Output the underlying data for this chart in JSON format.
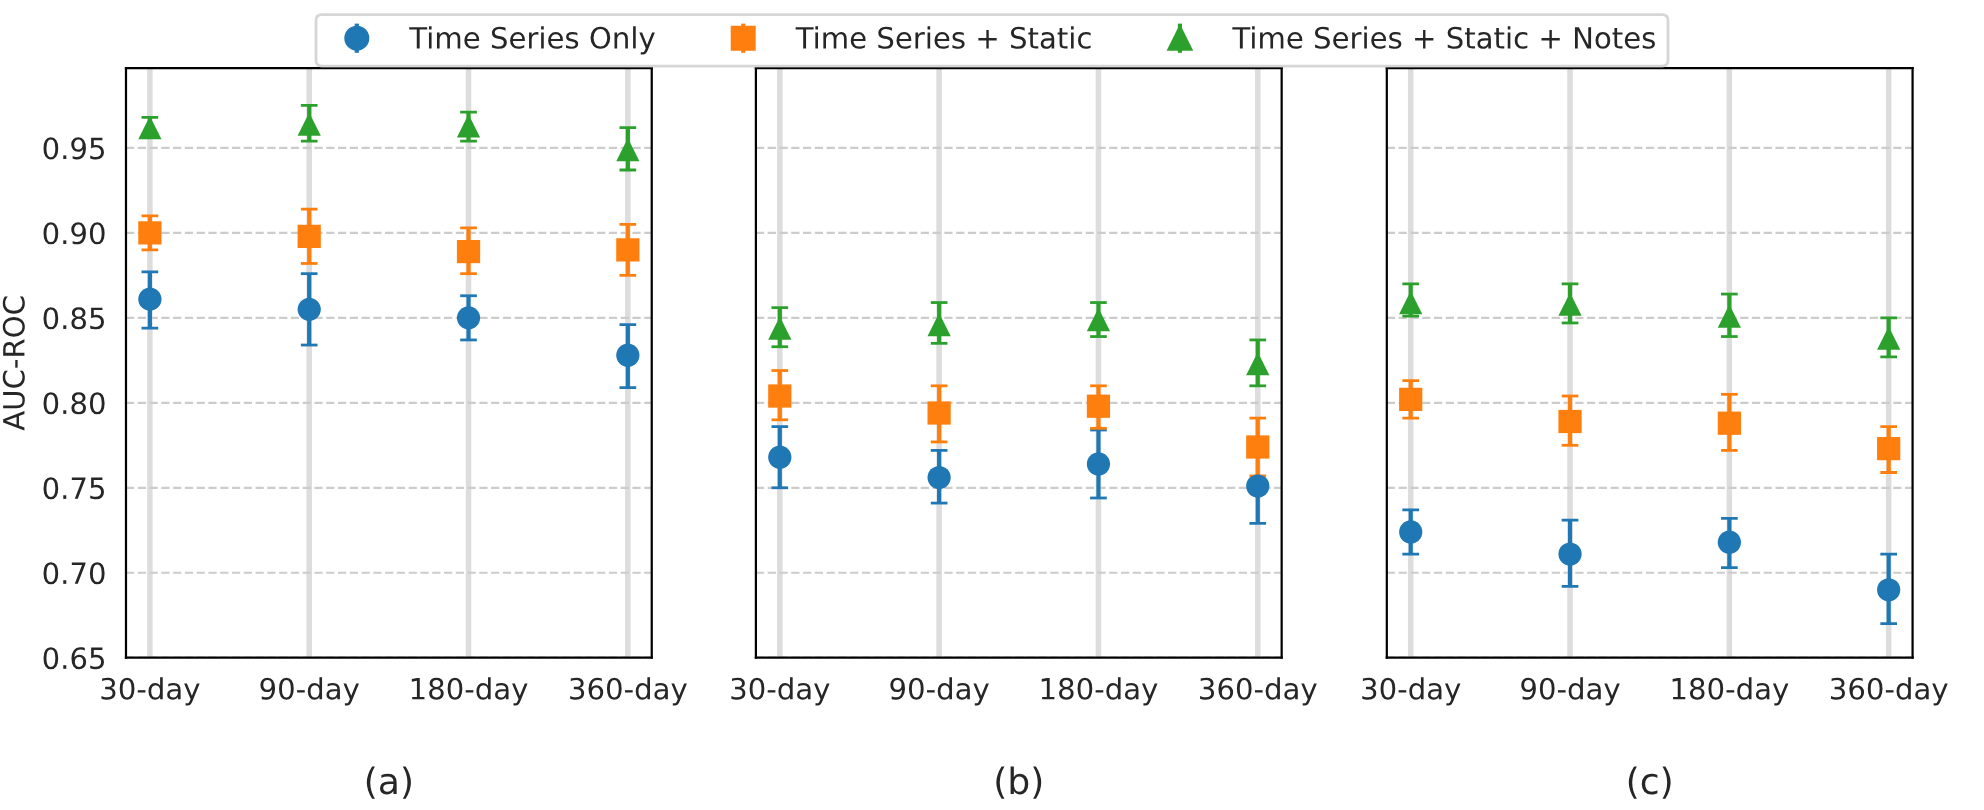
{
  "chart_data": [
    {
      "type": "scatter",
      "xlabel": "(a)",
      "ylabel": "AUC-ROC",
      "categories": [
        "30-day",
        "90-day",
        "180-day",
        "360-day"
      ],
      "ylim": [
        0.65,
        0.997
      ],
      "yticks": [
        {
          "value": 0.65,
          "label": "0.65"
        },
        {
          "value": 0.7,
          "label": "0.70"
        },
        {
          "value": 0.75,
          "label": "0.75"
        },
        {
          "value": 0.8,
          "label": "0.80"
        },
        {
          "value": 0.85,
          "label": "0.85"
        },
        {
          "value": 0.9,
          "label": "0.90"
        },
        {
          "value": 0.95,
          "label": "0.95"
        }
      ],
      "grid": true,
      "legend": "top",
      "series": [
        {
          "name": "Time Series Only",
          "color": "#1f77b4",
          "marker": "circle",
          "values": [
            0.861,
            0.855,
            0.85,
            0.828
          ],
          "errors": [
            [
              0.844,
              0.877
            ],
            [
              0.834,
              0.876
            ],
            [
              0.837,
              0.863
            ],
            [
              0.809,
              0.846
            ]
          ]
        },
        {
          "name": "Time Series + Static",
          "color": "#ff7f0e",
          "marker": "square",
          "values": [
            0.9,
            0.898,
            0.889,
            0.89
          ],
          "errors": [
            [
              0.89,
              0.91
            ],
            [
              0.882,
              0.914
            ],
            [
              0.876,
              0.903
            ],
            [
              0.875,
              0.905
            ]
          ]
        },
        {
          "name": "Time Series + Static + Notes",
          "color": "#2ca02c",
          "marker": "triangle",
          "values": [
            0.962,
            0.964,
            0.963,
            0.949
          ],
          "errors": [
            [
              0.957,
              0.968
            ],
            [
              0.954,
              0.975
            ],
            [
              0.954,
              0.971
            ],
            [
              0.937,
              0.962
            ]
          ]
        }
      ]
    },
    {
      "type": "scatter",
      "xlabel": "(b)",
      "categories": [
        "30-day",
        "90-day",
        "180-day",
        "360-day"
      ],
      "ylim": [
        0.65,
        0.997
      ],
      "yticks": [
        {
          "value": 0.65,
          "label": null
        },
        {
          "value": 0.7,
          "label": null
        },
        {
          "value": 0.75,
          "label": null
        },
        {
          "value": 0.8,
          "label": null
        },
        {
          "value": 0.85,
          "label": null
        },
        {
          "value": 0.9,
          "label": null
        },
        {
          "value": 0.95,
          "label": null
        }
      ],
      "grid": true,
      "tick_labels": "x",
      "series": [
        {
          "color": "#1f77b4",
          "marker": "circle",
          "values": [
            0.768,
            0.756,
            0.764,
            0.751
          ],
          "errors": [
            [
              0.75,
              0.786
            ],
            [
              0.741,
              0.772
            ],
            [
              0.744,
              0.784
            ],
            [
              0.729,
              0.751
            ]
          ]
        },
        {
          "color": "#ff7f0e",
          "marker": "square",
          "values": [
            0.804,
            0.794,
            0.798,
            0.774
          ],
          "errors": [
            [
              0.79,
              0.819
            ],
            [
              0.777,
              0.81
            ],
            [
              0.785,
              0.81
            ],
            [
              0.757,
              0.791
            ]
          ]
        },
        {
          "color": "#2ca02c",
          "marker": "triangle",
          "values": [
            0.844,
            0.846,
            0.849,
            0.823
          ],
          "errors": [
            [
              0.833,
              0.856
            ],
            [
              0.835,
              0.859
            ],
            [
              0.839,
              0.859
            ],
            [
              0.81,
              0.837
            ]
          ]
        }
      ]
    },
    {
      "type": "scatter",
      "xlabel": "(c)",
      "categories": [
        "30-day",
        "90-day",
        "180-day",
        "360-day"
      ],
      "ylim": [
        0.65,
        0.997
      ],
      "yticks": [
        {
          "value": 0.65,
          "label": null
        },
        {
          "value": 0.7,
          "label": null
        },
        {
          "value": 0.75,
          "label": null
        },
        {
          "value": 0.8,
          "label": null
        },
        {
          "value": 0.85,
          "label": null
        },
        {
          "value": 0.9,
          "label": null
        },
        {
          "value": 0.95,
          "label": null
        }
      ],
      "grid": true,
      "tick_labels": "x",
      "series": [
        {
          "color": "#1f77b4",
          "marker": "circle",
          "values": [
            0.724,
            0.711,
            0.718,
            0.69
          ],
          "errors": [
            [
              0.711,
              0.737
            ],
            [
              0.692,
              0.731
            ],
            [
              0.703,
              0.732
            ],
            [
              0.67,
              0.711
            ]
          ]
        },
        {
          "color": "#ff7f0e",
          "marker": "square",
          "values": [
            0.802,
            0.789,
            0.788,
            0.773
          ],
          "errors": [
            [
              0.791,
              0.813
            ],
            [
              0.775,
              0.804
            ],
            [
              0.772,
              0.805
            ],
            [
              0.759,
              0.786
            ]
          ]
        },
        {
          "color": "#2ca02c",
          "marker": "triangle",
          "values": [
            0.859,
            0.858,
            0.851,
            0.838
          ],
          "errors": [
            [
              0.851,
              0.87
            ],
            [
              0.847,
              0.87
            ],
            [
              0.839,
              0.864
            ],
            [
              0.827,
              0.85
            ]
          ]
        }
      ]
    }
  ]
}
